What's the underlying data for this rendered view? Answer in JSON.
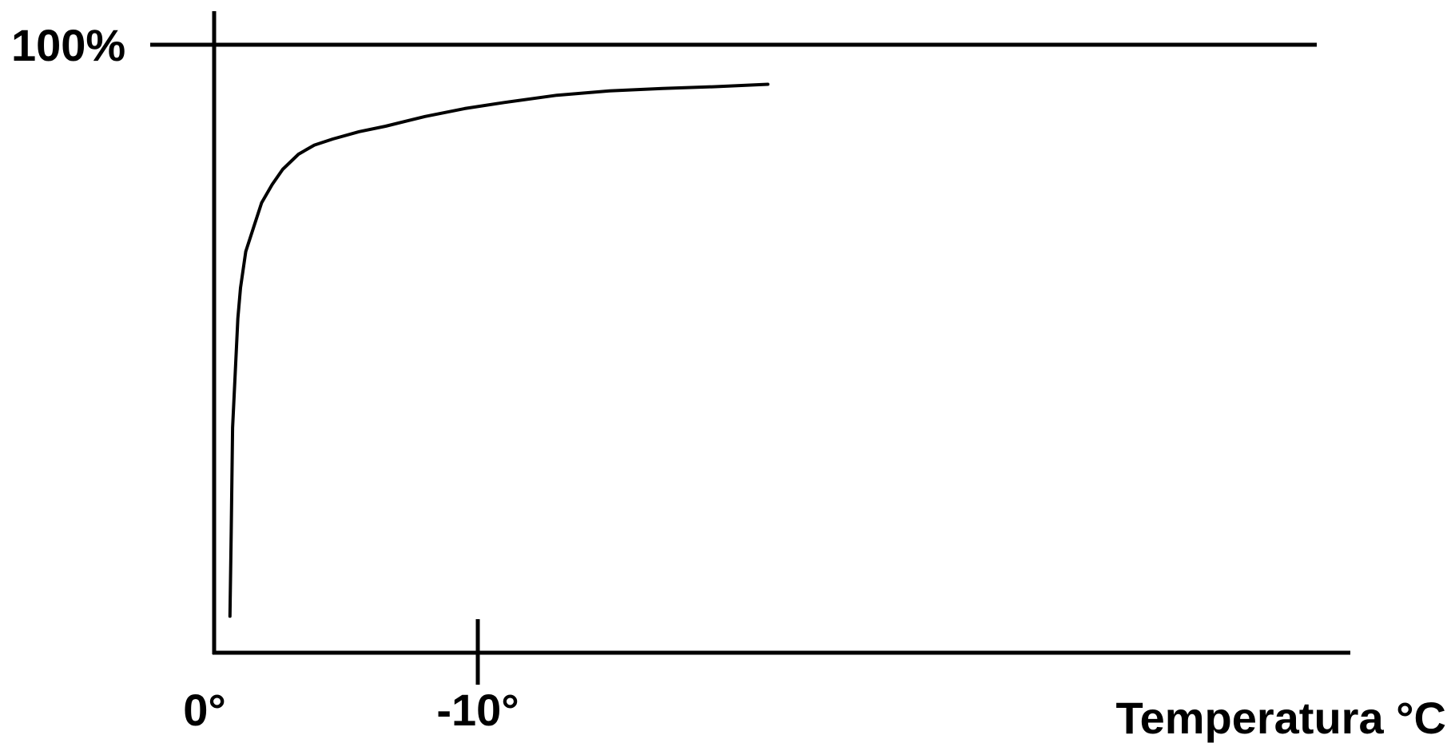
{
  "chart_data": {
    "type": "line",
    "title": "",
    "xlabel": "Temperatura °C",
    "ylabel": "",
    "x_tick_labels": [
      "0°",
      "-10°"
    ],
    "x_ticks": [
      0,
      -10
    ],
    "y_tick_labels": [
      "100%"
    ],
    "y_ticks": [
      100
    ],
    "xlim": [
      0,
      -43
    ],
    "ylim": [
      0,
      100
    ],
    "reference_line": {
      "y": 100,
      "label": "100%"
    },
    "grid": false,
    "legend": "none",
    "colors": {
      "line": "#000000",
      "axes": "#000000"
    },
    "series": [
      {
        "x": [
          -0.6,
          -0.65,
          -0.7,
          -0.8,
          -0.9,
          -1.0,
          -1.2,
          -1.5,
          -1.8,
          -2.2,
          -2.6,
          -3.2,
          -3.8,
          -4.5,
          -5.5,
          -6.5,
          -8.0,
          -9.5,
          -11.0,
          -13.0,
          -15.0,
          -17.0,
          -19.0,
          -21.0
        ],
        "values": [
          6,
          20,
          37,
          46,
          55,
          60,
          66,
          70,
          74,
          77,
          79.5,
          82,
          83.5,
          84.5,
          85.7,
          86.6,
          88.2,
          89.5,
          90.5,
          91.7,
          92.4,
          92.8,
          93.1,
          93.5
        ]
      }
    ]
  }
}
